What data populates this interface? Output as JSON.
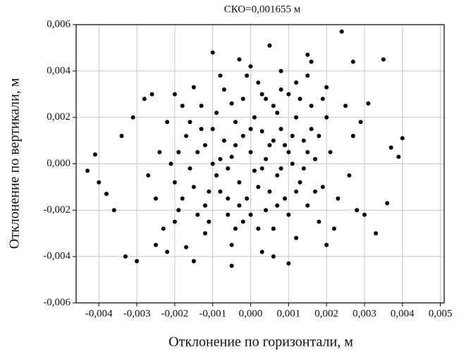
{
  "chart_data": {
    "type": "scatter",
    "title": "СКО=0,001655 м",
    "x_label": "Отклонение по горизонтали, м",
    "y_label": "Отклонение по вертикали, м",
    "color": "#000000",
    "grid": true,
    "xlim": [
      -0.0046,
      0.0051
    ],
    "ylim": [
      -0.006,
      0.006
    ],
    "xticks": [
      {
        "value": -0.004,
        "label": "-0,004"
      },
      {
        "value": -0.003,
        "label": "-0,003"
      },
      {
        "value": -0.002,
        "label": "-0,002"
      },
      {
        "value": -0.001,
        "label": "-0,001"
      },
      {
        "value": 0,
        "label": "0,000"
      },
      {
        "value": 0.001,
        "label": "0,001"
      },
      {
        "value": 0.002,
        "label": "0,002"
      },
      {
        "value": 0.003,
        "label": "0,003"
      },
      {
        "value": 0.004,
        "label": "0,004"
      },
      {
        "value": 0.005,
        "label": "0,005"
      }
    ],
    "yticks": [
      {
        "value": -0.006,
        "label": "-0,006"
      },
      {
        "value": -0.004,
        "label": "-0,004"
      },
      {
        "value": -0.002,
        "label": "-0,002"
      },
      {
        "value": 0,
        "label": "0,000"
      },
      {
        "value": 0.002,
        "label": "0,002"
      },
      {
        "value": 0.004,
        "label": "0,004"
      },
      {
        "value": 0.006,
        "label": "0,006"
      }
    ],
    "x": [
      -0.0043,
      -0.0041,
      -0.0038,
      -0.004,
      -0.0036,
      -0.0033,
      -0.003,
      -0.0034,
      -0.0031,
      -0.0028,
      0.004,
      0.0039,
      0.0037,
      0.0035,
      0.0024,
      0.0033,
      0.003,
      0.0036,
      -0.0005,
      0.001,
      -0.0015,
      0.002,
      -0.0025,
      0.0015,
      0.0005,
      -0.001,
      0.0027,
      0.0031,
      -0.0026,
      -0.0022,
      -0.0025,
      -0.0024,
      -0.0022,
      -0.002,
      -0.0018,
      -0.0015,
      -0.0012,
      -0.0008,
      -0.0005,
      0,
      0.0003,
      0.0008,
      0.0012,
      0.0015,
      0.0018,
      0.002,
      0.0023,
      0.0025,
      0.0026,
      0.0027,
      -0.0027,
      -0.0023,
      0.0022,
      -0.002,
      0.0016,
      -0.0003,
      0.0006,
      -0.0017,
      0.0028,
      0.0029,
      -0.0015,
      -0.0014,
      -0.0013,
      -0.0012,
      -0.001,
      -0.0009,
      -0.0008,
      -0.0007,
      -0.0006,
      -0.0005,
      -0.0004,
      -0.0003,
      -0.0002,
      -0.0001,
      0,
      0.0001,
      0.0002,
      0.0003,
      0.0004,
      0.0005,
      0.0006,
      0.0007,
      0.0008,
      0.0009,
      0.001,
      0.0011,
      0.0012,
      0.0013,
      0.0014,
      0.0015,
      0.0016,
      0.0017,
      0.0018,
      0.0019,
      0.002,
      -0.0016,
      -0.0017,
      -0.0018,
      -0.0019,
      -0.002,
      -0.0011,
      -0.0009,
      -0.0007,
      -0.0004,
      -0.0002,
      0,
      0.0002,
      0.0004,
      0.0006,
      0.0008,
      0.001,
      0.0012,
      0.0014,
      -0.0013,
      -0.0006,
      -0.0001,
      0.0003,
      0.0007,
      0.0011,
      0.0005,
      -0.0008,
      -0.0003,
      0.0001,
      0.0009,
      0.0013,
      -0.0014,
      -0.001,
      -0.0005,
      0,
      0.0004,
      0.0008,
      -0.0012,
      -0.0016,
      0.0006,
      0.001,
      -0.0002,
      0.0002,
      -0.0006,
      0.0015,
      0.0017,
      -0.0019,
      -0.0021,
      0.0021,
      0.0019,
      -0.0011,
      0.0003,
      -0.0004,
      0.0007,
      0.0012,
      0.0016
    ],
    "values": [
      -0.0003,
      0.0004,
      -0.0013,
      -0.0008,
      -0.002,
      -0.004,
      -0.0042,
      0.0012,
      0.002,
      0.0028,
      0.0011,
      0.0003,
      0.0007,
      0.0045,
      0.0057,
      -0.003,
      -0.0022,
      -0.0017,
      -0.0044,
      -0.0043,
      -0.0042,
      -0.0035,
      -0.0035,
      0.0047,
      0.0051,
      0.0048,
      0.0044,
      0.0026,
      0.003,
      -0.0038,
      -0.0015,
      0.0005,
      0.0018,
      -0.0025,
      0.0025,
      0.0033,
      -0.003,
      0.0038,
      -0.0035,
      0.0042,
      -0.0038,
      0.004,
      -0.0032,
      0.0038,
      -0.0025,
      0.0033,
      -0.0015,
      0.0025,
      -0.0005,
      0.0012,
      -0.0005,
      -0.0028,
      -0.0028,
      0.003,
      0.0044,
      0.0045,
      -0.004,
      -0.0036,
      -0.002,
      0.0018,
      -0.001,
      0.0005,
      0.0015,
      -0.0018,
      0,
      0.0022,
      -0.0012,
      0.001,
      -0.0022,
      0.0003,
      0.0018,
      -0.0008,
      0.0028,
      -0.0015,
      0.0005,
      0.002,
      -0.001,
      0.003,
      -0.002,
      0.0008,
      0.0025,
      -0.0005,
      0.0015,
      -0.0015,
      0.003,
      0,
      0.002,
      -0.0008,
      0.001,
      -0.0018,
      0.0025,
      0.0002,
      0.0012,
      -0.001,
      0.002,
      -0.0002,
      0.0012,
      -0.0015,
      0.0005,
      -0.0008,
      -0.0025,
      -0.0005,
      0.0032,
      -0.0028,
      0.0012,
      -0.0022,
      0.0035,
      0.0002,
      -0.0028,
      -0.0002,
      -0.0022,
      0.0035,
      -0.0002,
      0.0025,
      -0.0002,
      0.0038,
      0.0014,
      0.0022,
      0.0012,
      -0.0012,
      0.0002,
      -0.0018,
      -0.0003,
      0.0008,
      0.0028,
      -0.0022,
      0.0015,
      0.0026,
      0.0015,
      0.0028,
      0.0032,
      0.0008,
      0.0018,
      0.001,
      0.0005,
      -0.0025,
      -0.0028,
      -0.0015,
      0.0005,
      -0.0012,
      -0.002,
      0,
      0.0005,
      0.0028,
      -0.0012,
      -0.0002,
      0.0008,
      -0.0018,
      -0.0012,
      0.0015
    ]
  }
}
